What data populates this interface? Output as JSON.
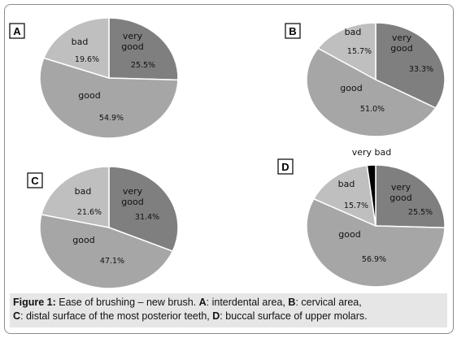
{
  "chart_data": [
    {
      "type": "pie",
      "panel": "A",
      "title": "",
      "slices": [
        {
          "label": "very good",
          "value": 25.5,
          "value_label": "25.5%",
          "color": "#7f7f7f"
        },
        {
          "label": "good",
          "value": 54.9,
          "value_label": "54.9%",
          "color": "#a6a6a6"
        },
        {
          "label": "bad",
          "value": 19.6,
          "value_label": "19.6%",
          "color": "#bfbfbf"
        }
      ]
    },
    {
      "type": "pie",
      "panel": "B",
      "title": "",
      "slices": [
        {
          "label": "very good",
          "value": 33.3,
          "value_label": "33.3%",
          "color": "#7f7f7f"
        },
        {
          "label": "good",
          "value": 51.0,
          "value_label": "51.0%",
          "color": "#a6a6a6"
        },
        {
          "label": "bad",
          "value": 15.7,
          "value_label": "15.7%",
          "color": "#bfbfbf"
        }
      ]
    },
    {
      "type": "pie",
      "panel": "C",
      "title": "",
      "slices": [
        {
          "label": "very good",
          "value": 31.4,
          "value_label": "31.4%",
          "color": "#7f7f7f"
        },
        {
          "label": "good",
          "value": 47.1,
          "value_label": "47.1%",
          "color": "#a6a6a6"
        },
        {
          "label": "bad",
          "value": 21.6,
          "value_label": "21.6%",
          "color": "#bfbfbf"
        }
      ]
    },
    {
      "type": "pie",
      "panel": "D",
      "title": "",
      "slices": [
        {
          "label": "very good",
          "value": 25.5,
          "value_label": "25.5%",
          "color": "#7f7f7f"
        },
        {
          "label": "good",
          "value": 56.9,
          "value_label": "56.9%",
          "color": "#a6a6a6"
        },
        {
          "label": "bad",
          "value": 15.7,
          "value_label": "15.7%",
          "color": "#bfbfbf"
        },
        {
          "label": "very bad",
          "value": 2.0,
          "value_label": "",
          "color": "#000000"
        }
      ]
    }
  ],
  "caption": {
    "figure_label": "Figure 1:",
    "text_1": " Ease of brushing – new brush. ",
    "a_key": "A",
    "a_text": ": interdental area, ",
    "b_key": "B",
    "b_text": ": cervical area,",
    "c_key": "C",
    "c_text": ": distal surface of the most posterior teeth, ",
    "d_key": "D",
    "d_text": ": buccal surface of upper molars."
  }
}
